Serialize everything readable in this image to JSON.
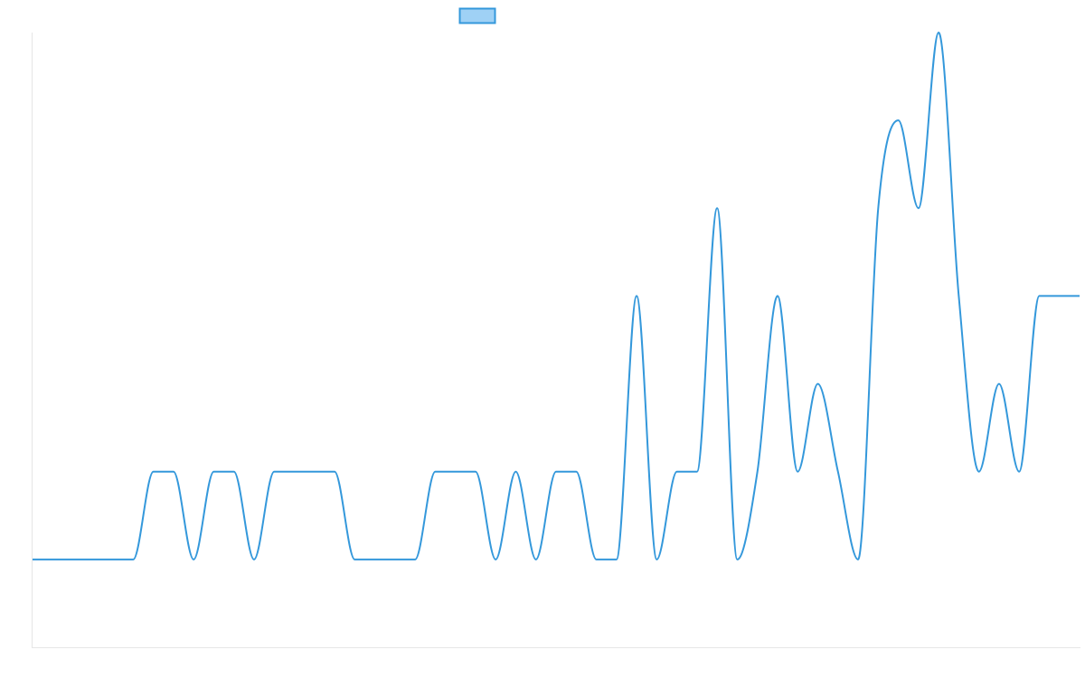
{
  "chart_data": {
    "type": "line",
    "title": "",
    "xlabel": "",
    "ylabel": "",
    "grid": false,
    "legend": {
      "position": "top-center",
      "entries": [
        {
          "label": "",
          "swatch_fill": "#9fd1f5",
          "swatch_stroke": "#3498db"
        }
      ]
    },
    "colors": {
      "line": "#3498db",
      "axis": "#e6e6e6"
    },
    "xlim": [
      0,
      51
    ],
    "ylim": [
      0,
      7
    ],
    "series": [
      {
        "values": [
          1,
          1,
          1,
          1,
          1,
          1,
          2,
          2,
          1,
          2,
          2,
          1,
          2,
          2,
          2,
          2,
          1,
          1,
          1,
          1,
          2,
          2,
          2,
          1,
          2,
          1,
          2,
          2,
          1,
          1,
          4,
          1,
          2,
          2,
          5,
          1,
          2,
          4,
          2,
          3,
          2,
          1,
          5,
          6,
          5,
          7,
          4,
          2,
          3,
          2,
          4,
          4,
          4
        ]
      }
    ]
  }
}
